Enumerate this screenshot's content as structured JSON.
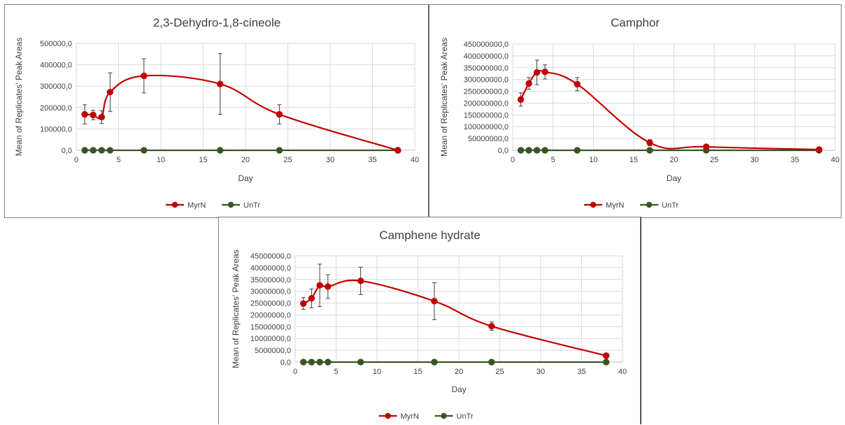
{
  "colors": {
    "myrn": "#c00000",
    "untr": "#375623",
    "grid": "#d9d9d9",
    "axis": "#bfbfbf",
    "errbar": "#404040"
  },
  "chart_data": [
    {
      "type": "line",
      "title": "2,3-Dehydro-1,8-cineole",
      "xlabel": "Day",
      "ylabel": "Mean of Replicates' Peak Areas",
      "xlim": [
        0,
        40
      ],
      "ylim": [
        0,
        500000
      ],
      "xticks": [
        "0",
        "5",
        "10",
        "15",
        "20",
        "25",
        "30",
        "35",
        "40"
      ],
      "yticks": [
        "0,0",
        "100000,0",
        "200000,0",
        "300000,0",
        "400000,0",
        "500000,0"
      ],
      "grid": true,
      "legend": "bottom",
      "series": [
        {
          "name": "MyrN",
          "color": "#c00000",
          "x": [
            1,
            2,
            3,
            4,
            8,
            17,
            24,
            38
          ],
          "y": [
            168000,
            165000,
            155000,
            272000,
            348000,
            310000,
            168000,
            0
          ],
          "err": [
            45000,
            22000,
            30000,
            90000,
            80000,
            142000,
            45000,
            0
          ]
        },
        {
          "name": "UnTr",
          "color": "#375623",
          "x": [
            1,
            2,
            3,
            4,
            8,
            17,
            24,
            38
          ],
          "y": [
            0,
            0,
            0,
            0,
            0,
            0,
            0,
            0
          ],
          "err": [
            0,
            0,
            0,
            0,
            0,
            0,
            0,
            0
          ]
        }
      ]
    },
    {
      "type": "line",
      "title": "Camphor",
      "xlabel": "Day",
      "ylabel": "Mean of Replicates' Peak Areas",
      "xlim": [
        0,
        40
      ],
      "ylim": [
        0,
        450000000
      ],
      "xticks": [
        "0",
        "5",
        "10",
        "15",
        "20",
        "25",
        "30",
        "35",
        "40"
      ],
      "yticks": [
        "0,0",
        "50000000,0",
        "100000000,0",
        "150000000,0",
        "200000000,0",
        "250000000,0",
        "300000000,0",
        "350000000,0",
        "400000000,0",
        "450000000,0"
      ],
      "grid": true,
      "legend": "bottom",
      "series": [
        {
          "name": "MyrN",
          "color": "#c00000",
          "x": [
            1,
            2,
            3,
            4,
            8,
            17,
            24,
            38
          ],
          "y": [
            215000000,
            283000000,
            330000000,
            332000000,
            280000000,
            32000000,
            15000000,
            3000000
          ],
          "err": [
            28000000,
            25000000,
            52000000,
            30000000,
            28000000,
            13000000,
            4000000,
            2000000
          ]
        },
        {
          "name": "UnTr",
          "color": "#375623",
          "x": [
            1,
            2,
            3,
            4,
            8,
            17,
            24,
            38
          ],
          "y": [
            0,
            0,
            0,
            0,
            0,
            0,
            0,
            0
          ],
          "err": [
            0,
            0,
            0,
            0,
            0,
            0,
            0,
            0
          ]
        }
      ]
    },
    {
      "type": "line",
      "title": "Camphene hydrate",
      "xlabel": "Day",
      "ylabel": "Mean of Replicates' Peak Areas",
      "xlim": [
        0,
        40
      ],
      "ylim": [
        0,
        45000000
      ],
      "xticks": [
        "0",
        "5",
        "10",
        "15",
        "20",
        "25",
        "30",
        "35",
        "40"
      ],
      "yticks": [
        "0,0",
        "5000000,0",
        "10000000,0",
        "15000000,0",
        "20000000,0",
        "25000000,0",
        "30000000,0",
        "35000000,0",
        "40000000,0",
        "45000000,0"
      ],
      "grid": true,
      "legend": "bottom",
      "series": [
        {
          "name": "MyrN",
          "color": "#c00000",
          "x": [
            1,
            2,
            3,
            4,
            8,
            17,
            24,
            38
          ],
          "y": [
            24800000,
            27000000,
            32500000,
            32000000,
            34400000,
            25800000,
            15200000,
            2700000
          ],
          "err": [
            2500000,
            4000000,
            9000000,
            5000000,
            5800000,
            7800000,
            1800000,
            0
          ]
        },
        {
          "name": "UnTr",
          "color": "#375623",
          "x": [
            1,
            2,
            3,
            4,
            8,
            17,
            24,
            38
          ],
          "y": [
            0,
            0,
            0,
            0,
            0,
            0,
            0,
            0
          ],
          "err": [
            0,
            0,
            0,
            0,
            0,
            0,
            0,
            0
          ]
        }
      ]
    }
  ]
}
